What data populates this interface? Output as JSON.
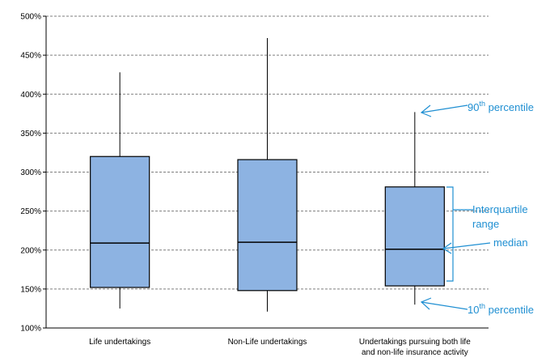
{
  "chart_data": {
    "type": "box",
    "y_ticks": [
      "100%",
      "150%",
      "200%",
      "250%",
      "300%",
      "350%",
      "400%",
      "450%",
      "500%"
    ],
    "ylim": [
      100,
      500
    ],
    "grid": "horizontal dashed",
    "categories": [
      {
        "label_lines": [
          "Life undertakings"
        ],
        "p10": 125,
        "q1": 152,
        "median": 209,
        "q3": 320,
        "p90": 428
      },
      {
        "label_lines": [
          "Non-Life undertakings"
        ],
        "p10": 121,
        "q1": 148,
        "median": 210,
        "q3": 316,
        "p90": 472
      },
      {
        "label_lines": [
          "Undertakings pursuing both life",
          "and non-life insurance activity"
        ],
        "p10": 130,
        "q1": 154,
        "median": 201,
        "q3": 281,
        "p90": 377
      }
    ],
    "annotations": {
      "p90": {
        "sup": "th",
        "prefix": "90",
        "suffix": " percentile"
      },
      "iqr": {
        "line1": "Interquartile",
        "line2": "range"
      },
      "median": {
        "text": "median"
      },
      "p10": {
        "sup": "th",
        "prefix": "10",
        "suffix": " percentile"
      }
    },
    "colors": {
      "box_fill": "#8db3e2",
      "box_stroke": "#000000",
      "annotation": "#1f8fd2",
      "grid": "#7f7f7f"
    }
  }
}
